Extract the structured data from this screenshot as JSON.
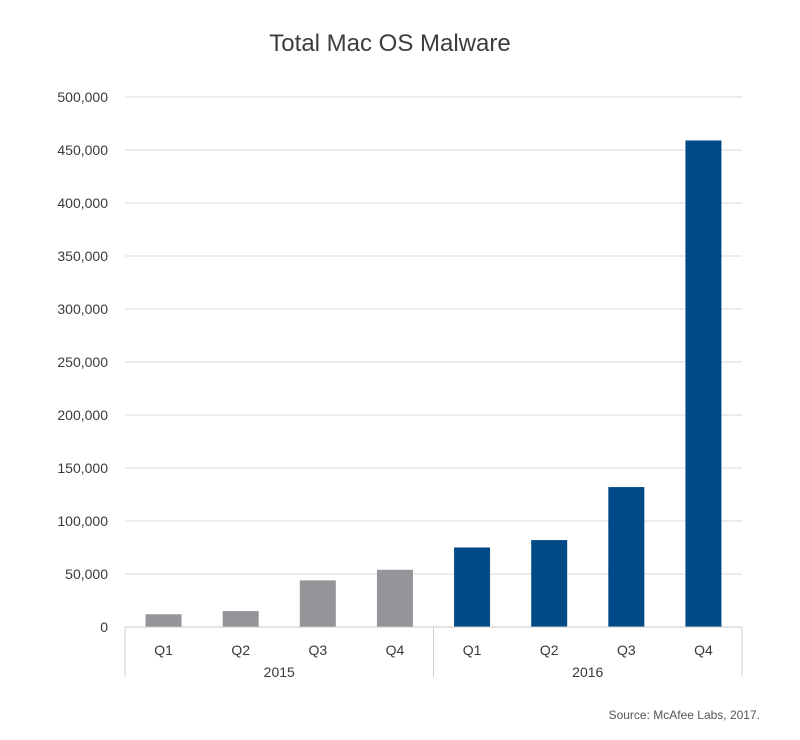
{
  "chart_data": {
    "type": "bar",
    "title": "Total Mac OS Malware",
    "xlabel": "",
    "ylabel": "",
    "groups": [
      {
        "label": "2015",
        "color": "#939598",
        "categories": [
          "Q1",
          "Q2",
          "Q3",
          "Q4"
        ],
        "values": [
          12000,
          15000,
          44000,
          54000
        ]
      },
      {
        "label": "2016",
        "color": "#004b87",
        "categories": [
          "Q1",
          "Q2",
          "Q3",
          "Q4"
        ],
        "values": [
          75000,
          82000,
          132000,
          459000
        ]
      }
    ],
    "ylim": [
      0,
      500000
    ],
    "yticks": [
      0,
      50000,
      100000,
      150000,
      200000,
      250000,
      300000,
      350000,
      400000,
      450000,
      500000
    ],
    "ytick_labels": [
      "0",
      "50,000",
      "100,000",
      "150,000",
      "200,000",
      "250,000",
      "300,000",
      "350,000",
      "400,000",
      "450,000",
      "500,000"
    ],
    "grid": true,
    "gridline_color": "#d9d9d9",
    "legend": "none"
  },
  "source": "Source: McAfee Labs, 2017."
}
